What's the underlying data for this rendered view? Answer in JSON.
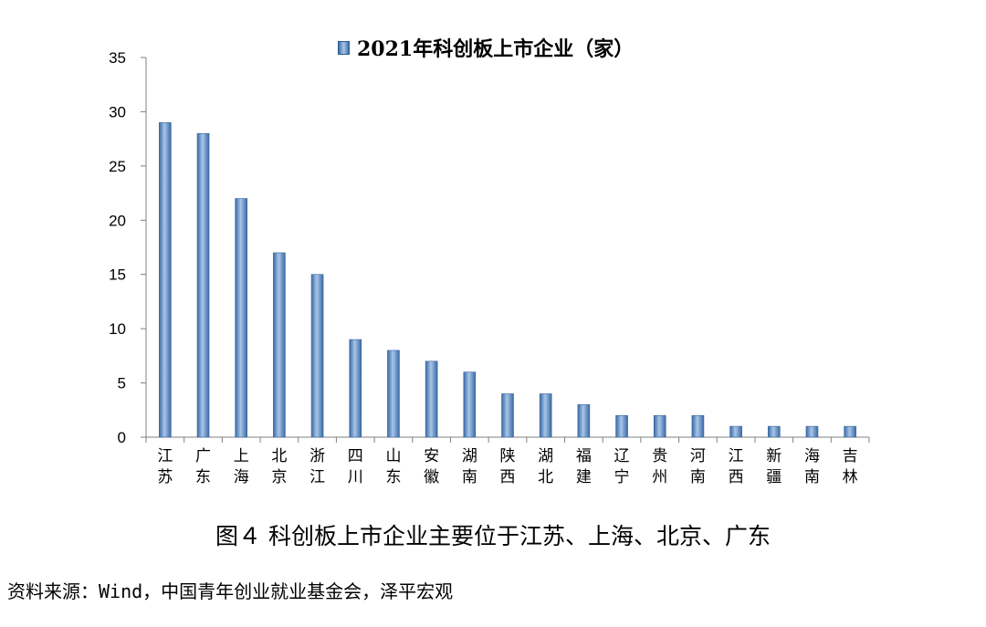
{
  "chart_data": {
    "type": "bar",
    "legend": "2021年科创板上市企业（家）",
    "legend_position": "top",
    "categories": [
      "江苏",
      "广东",
      "上海",
      "北京",
      "浙江",
      "四川",
      "山东",
      "安徽",
      "湖南",
      "陕西",
      "湖北",
      "福建",
      "辽宁",
      "贵州",
      "河南",
      "江西",
      "新疆",
      "海南",
      "吉林"
    ],
    "series": [
      {
        "name": "2021年科创板上市企业（家）",
        "values": [
          29,
          28,
          22,
          17,
          15,
          9,
          8,
          7,
          6,
          4,
          4,
          3,
          2,
          2,
          2,
          1,
          1,
          1,
          1
        ]
      }
    ],
    "ylim": [
      0,
      35
    ],
    "yticks": [
      0,
      5,
      10,
      15,
      20,
      25,
      30,
      35
    ],
    "grid": false,
    "bar_color": "#4a7ebb"
  },
  "caption": "图４ 科创板上市企业主要位于江苏、上海、北京、广东",
  "source": "资料来源：Wind，中国青年创业就业基金会，泽平宏观"
}
